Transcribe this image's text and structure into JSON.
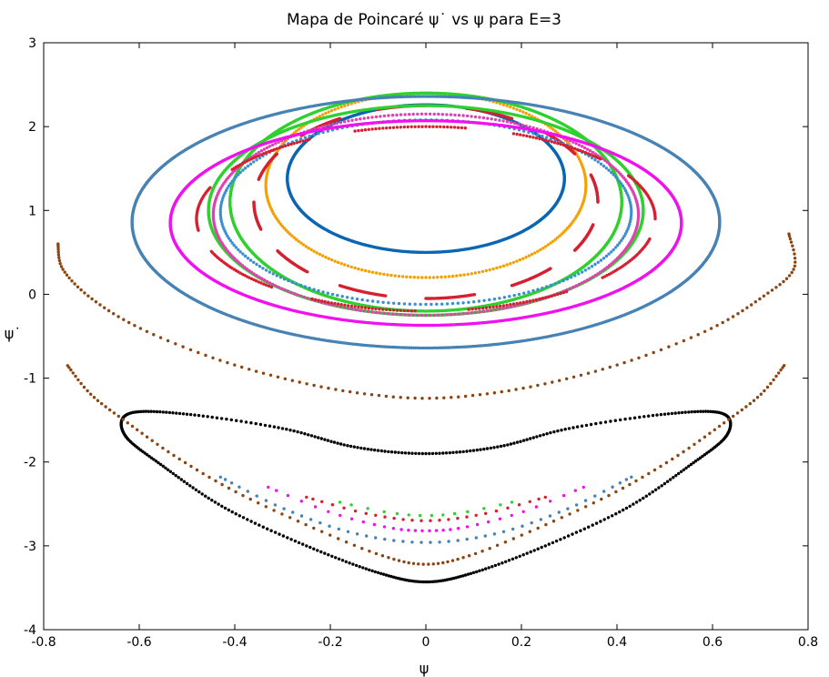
{
  "chart_data": {
    "type": "scatter",
    "title": "Mapa de Poincaré ψ˙ vs ψ para E=3",
    "xlabel": "ψ",
    "ylabel": "ψ˙",
    "xlim": [
      -0.8,
      0.8
    ],
    "ylim": [
      -4,
      3
    ],
    "xticks": [
      "-0.8",
      "-0.6",
      "-0.4",
      "-0.2",
      "0",
      "0.2",
      "0.4",
      "0.6",
      "0.8"
    ],
    "yticks": [
      "-4",
      "-3",
      "-2",
      "-1",
      "0",
      "1",
      "2",
      "3"
    ],
    "grid": false,
    "legend": "none",
    "series": [
      {
        "color": "#0a66b2",
        "shape": "ellipse",
        "center": [
          0,
          1.38
        ],
        "rx": 0.29,
        "ry": 0.88,
        "n": 700
      },
      {
        "color": "#f5a000",
        "shape": "ellipse",
        "center": [
          0,
          1.3
        ],
        "rx": 0.335,
        "ry": 1.1,
        "n": 260
      },
      {
        "color": "#d42030",
        "shape": "dashed-ellipse",
        "center": [
          0,
          1.1
        ],
        "rx": 0.36,
        "ry": 1.15,
        "n": 900,
        "dash_segments": 12
      },
      {
        "color": "#2fd02f",
        "shape": "ellipse",
        "center": [
          0,
          1.1
        ],
        "rx": 0.41,
        "ry": 1.3,
        "n": 900
      },
      {
        "color": "#3a8fd0",
        "shape": "ellipse",
        "center": [
          0,
          0.98
        ],
        "rx": 0.43,
        "ry": 1.1,
        "n": 240
      },
      {
        "color": "#2fd02f",
        "shape": "ellipse",
        "center": [
          0,
          1.0
        ],
        "rx": 0.455,
        "ry": 1.25,
        "n": 900
      },
      {
        "color": "#e040b0",
        "shape": "ellipse",
        "center": [
          0,
          0.95
        ],
        "rx": 0.445,
        "ry": 1.2,
        "n": 320
      },
      {
        "color": "#d42030",
        "shape": "chain",
        "center": [
          0,
          0.9
        ],
        "rx": 0.48,
        "ry": 1.1,
        "n": 400
      },
      {
        "color": "#f010f0",
        "shape": "ellipse",
        "center": [
          0,
          0.85
        ],
        "rx": 0.535,
        "ry": 1.22,
        "n": 900
      },
      {
        "color": "#4682b4",
        "shape": "ellipse",
        "center": [
          0,
          0.86
        ],
        "rx": 0.615,
        "ry": 1.5,
        "n": 900
      },
      {
        "color": "#8b4513",
        "shape": "arc",
        "points": [
          [
            -0.77,
            0.6
          ],
          [
            -0.76,
            0.3
          ],
          [
            -0.7,
            -0.05
          ],
          [
            -0.6,
            -0.4
          ],
          [
            -0.45,
            -0.75
          ],
          [
            -0.3,
            -1.0
          ],
          [
            -0.15,
            -1.17
          ],
          [
            0,
            -1.24
          ],
          [
            0.15,
            -1.17
          ],
          [
            0.3,
            -1.0
          ],
          [
            0.45,
            -0.75
          ],
          [
            0.6,
            -0.4
          ],
          [
            0.7,
            -0.05
          ],
          [
            0.77,
            0.3
          ],
          [
            0.76,
            0.72
          ]
        ],
        "n": 140
      },
      {
        "color": "#000000",
        "shape": "closed",
        "points": [
          [
            -0.62,
            -1.42
          ],
          [
            -0.5,
            -1.43
          ],
          [
            -0.3,
            -1.6
          ],
          [
            -0.15,
            -1.82
          ],
          [
            0,
            -1.9
          ],
          [
            0.15,
            -1.82
          ],
          [
            0.3,
            -1.6
          ],
          [
            0.5,
            -1.43
          ],
          [
            0.62,
            -1.42
          ],
          [
            0.63,
            -1.68
          ],
          [
            0.55,
            -2.05
          ],
          [
            0.42,
            -2.55
          ],
          [
            0.25,
            -3.0
          ],
          [
            0.1,
            -3.32
          ],
          [
            0,
            -3.43
          ],
          [
            -0.1,
            -3.32
          ],
          [
            -0.25,
            -3.0
          ],
          [
            -0.42,
            -2.55
          ],
          [
            -0.55,
            -2.05
          ],
          [
            -0.63,
            -1.68
          ]
        ],
        "n": 420
      },
      {
        "color": "#8b4513",
        "shape": "arc",
        "points": [
          [
            -0.75,
            -0.85
          ],
          [
            -0.7,
            -1.2
          ],
          [
            -0.62,
            -1.55
          ],
          [
            -0.52,
            -1.95
          ],
          [
            -0.4,
            -2.35
          ],
          [
            -0.25,
            -2.75
          ],
          [
            -0.1,
            -3.1
          ],
          [
            0,
            -3.22
          ],
          [
            0.1,
            -3.1
          ],
          [
            0.25,
            -2.75
          ],
          [
            0.4,
            -2.35
          ],
          [
            0.52,
            -1.95
          ],
          [
            0.62,
            -1.55
          ],
          [
            0.7,
            -1.2
          ],
          [
            0.75,
            -0.85
          ]
        ],
        "n": 130
      },
      {
        "color": "#4682b4",
        "shape": "arc",
        "points": [
          [
            -0.43,
            -2.18
          ],
          [
            -0.3,
            -2.55
          ],
          [
            -0.15,
            -2.85
          ],
          [
            0,
            -2.96
          ],
          [
            0.15,
            -2.85
          ],
          [
            0.3,
            -2.55
          ],
          [
            0.43,
            -2.18
          ]
        ],
        "n": 48
      },
      {
        "color": "#f010f0",
        "shape": "arc",
        "points": [
          [
            -0.33,
            -2.3
          ],
          [
            -0.2,
            -2.6
          ],
          [
            -0.08,
            -2.78
          ],
          [
            0,
            -2.82
          ],
          [
            0.08,
            -2.78
          ],
          [
            0.2,
            -2.6
          ],
          [
            0.33,
            -2.3
          ]
        ],
        "n": 32
      },
      {
        "color": "#d42030",
        "shape": "arc",
        "points": [
          [
            -0.25,
            -2.42
          ],
          [
            -0.12,
            -2.62
          ],
          [
            0,
            -2.7
          ],
          [
            0.12,
            -2.62
          ],
          [
            0.25,
            -2.42
          ]
        ],
        "n": 26
      },
      {
        "color": "#2fd02f",
        "shape": "arc",
        "points": [
          [
            -0.18,
            -2.48
          ],
          [
            -0.08,
            -2.6
          ],
          [
            0,
            -2.64
          ],
          [
            0.08,
            -2.6
          ],
          [
            0.18,
            -2.48
          ]
        ],
        "n": 14
      }
    ]
  }
}
